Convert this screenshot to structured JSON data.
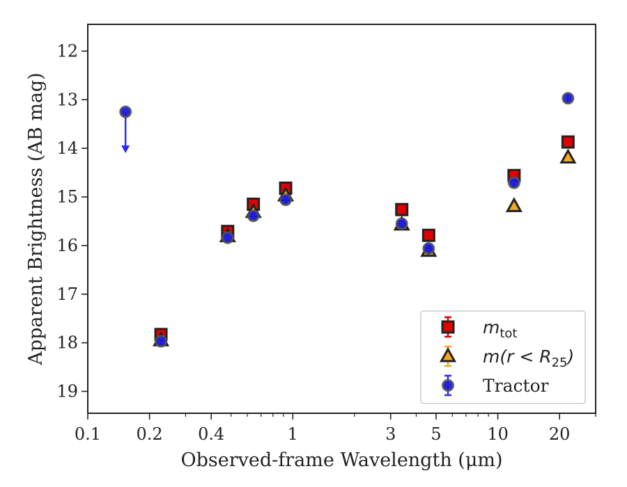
{
  "chart_data": {
    "type": "scatter",
    "xlabel": "Observed-frame Wavelength (μm)",
    "ylabel": "Apparent Brightness (AB mag)",
    "xscale": "log",
    "xlim": [
      0.1,
      30
    ],
    "ylim": [
      19.45,
      11.45
    ],
    "y_inverted": true,
    "xticks": [
      {
        "value": 0.1,
        "label": "0.1"
      },
      {
        "value": 0.2,
        "label": "0.2"
      },
      {
        "value": 0.4,
        "label": "0.4"
      },
      {
        "value": 1,
        "label": "1"
      },
      {
        "value": 3,
        "label": "3"
      },
      {
        "value": 5,
        "label": "5"
      },
      {
        "value": 10,
        "label": "10"
      },
      {
        "value": 20,
        "label": "20"
      }
    ],
    "yticks": [
      {
        "value": 12,
        "label": "12"
      },
      {
        "value": 13,
        "label": "13"
      },
      {
        "value": 14,
        "label": "14"
      },
      {
        "value": 15,
        "label": "15"
      },
      {
        "value": 16,
        "label": "16"
      },
      {
        "value": 17,
        "label": "17"
      },
      {
        "value": 18,
        "label": "18"
      },
      {
        "value": 19,
        "label": "19"
      }
    ],
    "legend_position": "lower-right",
    "series": [
      {
        "key": "mtot",
        "name": "m_tot",
        "legend_label": {
          "main": "m",
          "sub": "tot"
        },
        "marker": "square",
        "color": "#e00000",
        "edge": "#222222",
        "errcolor": "#dd0000",
        "points": [
          {
            "x": 0.2275,
            "y": 17.83
          },
          {
            "x": 0.4813,
            "y": 15.71
          },
          {
            "x": 0.6421,
            "y": 15.15
          },
          {
            "x": 0.9228,
            "y": 14.82
          },
          {
            "x": 3.4,
            "y": 15.26
          },
          {
            "x": 4.6,
            "y": 15.79
          },
          {
            "x": 12.0,
            "y": 14.56
          },
          {
            "x": 22.0,
            "y": 13.87
          }
        ]
      },
      {
        "key": "m_r25",
        "name": "m(r < R_25)",
        "legend_label": {
          "main": "m(r < R",
          "sub": "25",
          "close": ")"
        },
        "marker": "triangle",
        "color": "#f5a623",
        "edge": "#222222",
        "errcolor": "#f5a623",
        "points": [
          {
            "x": 0.2275,
            "y": 17.95
          },
          {
            "x": 0.4813,
            "y": 15.81
          },
          {
            "x": 0.6421,
            "y": 15.31
          },
          {
            "x": 0.9228,
            "y": 14.97
          },
          {
            "x": 3.4,
            "y": 15.57
          },
          {
            "x": 4.6,
            "y": 16.11
          },
          {
            "x": 12.0,
            "y": 15.19
          },
          {
            "x": 22.0,
            "y": 14.19
          }
        ]
      },
      {
        "key": "tractor",
        "name": "Tractor",
        "legend_label": {
          "main": "Tractor"
        },
        "marker": "circle",
        "color": "#1a1adf",
        "edge": "#555555",
        "errcolor": "#2a2aff",
        "points": [
          {
            "x": 0.2275,
            "y": 17.97
          },
          {
            "x": 0.4813,
            "y": 15.84
          },
          {
            "x": 0.6421,
            "y": 15.39
          },
          {
            "x": 0.9228,
            "y": 15.06
          },
          {
            "x": 3.4,
            "y": 15.55
          },
          {
            "x": 4.6,
            "y": 16.06
          },
          {
            "x": 12.0,
            "y": 14.71
          },
          {
            "x": 22.0,
            "y": 12.97
          }
        ],
        "upper_limits": [
          {
            "x": 0.1528,
            "y": 13.25,
            "arrow_to": 14.1
          }
        ]
      }
    ]
  }
}
